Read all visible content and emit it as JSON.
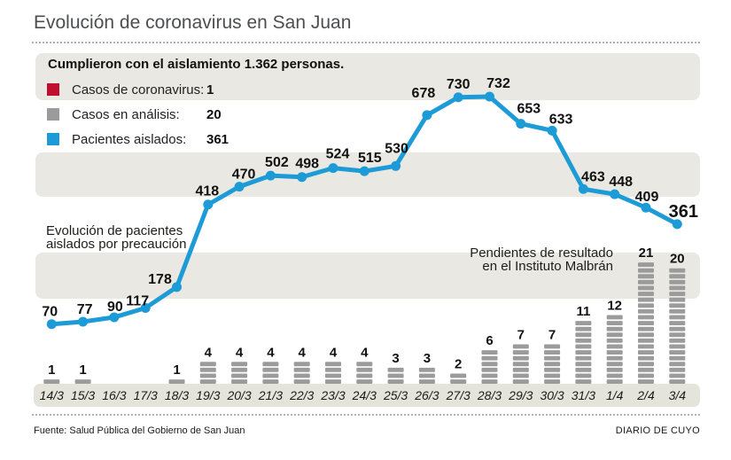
{
  "header": {
    "title": "Evolución de coronavirus en San Juan"
  },
  "infobox": {
    "headline": "Cumplieron con el aislamiento 1.362 personas.",
    "legend": [
      {
        "label": "Casos de coronavirus:",
        "value": "1",
        "color": "#c30d2e"
      },
      {
        "label": "Casos en análisis:",
        "value": "20",
        "color": "#9b9b9b"
      },
      {
        "label": "Pacientes aislados:",
        "value": "361",
        "color": "#1d9bd7"
      }
    ]
  },
  "annotations": {
    "line_series_line1": "Evolución de pacientes",
    "line_series_line2": "aislados por precaución",
    "bar_series_line1": "Pendientes de resultado",
    "bar_series_line2": "en el Instituto Malbrán"
  },
  "chart_data": {
    "type": "line",
    "title": "Evolución de coronavirus en San Juan",
    "categories": [
      "14/3",
      "15/3",
      "16/3",
      "17/3",
      "18/3",
      "19/3",
      "20/3",
      "21/3",
      "22/3",
      "23/3",
      "24/3",
      "25/3",
      "26/3",
      "27/3",
      "28/3",
      "29/3",
      "30/3",
      "31/3",
      "1/4",
      "2/4",
      "3/4"
    ],
    "series": [
      {
        "name": "Pacientes aislados",
        "type": "line",
        "color": "#1d9bd7",
        "values": [
          70,
          77,
          90,
          117,
          178,
          418,
          470,
          502,
          498,
          524,
          515,
          530,
          678,
          730,
          732,
          653,
          633,
          463,
          448,
          409,
          361
        ]
      },
      {
        "name": "Pendientes de resultado en el Instituto Malbrán",
        "type": "bar",
        "color": "#9b9b9c",
        "values": [
          1,
          1,
          null,
          null,
          1,
          4,
          4,
          4,
          4,
          4,
          4,
          3,
          3,
          2,
          6,
          7,
          7,
          11,
          12,
          21,
          20
        ]
      }
    ],
    "xlabel": "",
    "ylabel": "",
    "grid": false,
    "legend_position": "top-left",
    "value_labels": true,
    "final_value_emphasized": "361"
  },
  "footer": {
    "source": "Fuente: Salud Pública del Gobierno de San Juan",
    "credit": "DIARIO DE CUYO"
  }
}
